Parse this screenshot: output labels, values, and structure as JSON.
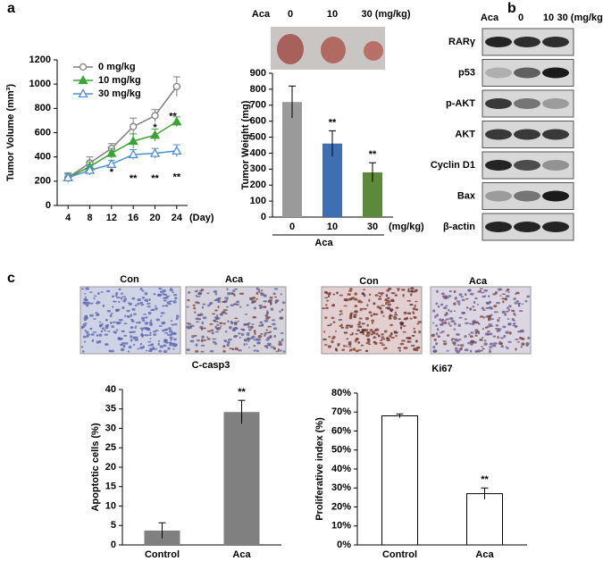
{
  "panels": {
    "a": "a",
    "b": "b",
    "c": "c"
  },
  "photo_header": {
    "drug": "Aca",
    "doses": [
      "0",
      "10",
      "30 (mg/kg)"
    ]
  },
  "blot": {
    "drug": "Aca",
    "doses": [
      "0",
      "10",
      "30 (mg/kg)"
    ],
    "rows": [
      "RARγ",
      "p53",
      "p-AKT",
      "AKT",
      "Cyclin D1",
      "Bax",
      "β-actin"
    ]
  },
  "micrographs": {
    "left": [
      "Con",
      "Aca"
    ],
    "right": [
      "Con",
      "Aca"
    ]
  },
  "chart_data": [
    {
      "type": "line",
      "ylabel": "Tumor Volume (mm³)",
      "xlabel": "(Day)",
      "x": [
        4,
        8,
        12,
        16,
        20,
        24
      ],
      "xlim": [
        2,
        26
      ],
      "xticks": [
        4,
        8,
        12,
        16,
        20,
        24
      ],
      "ylim": [
        0,
        1200
      ],
      "yticks": [
        0,
        200,
        400,
        600,
        800,
        1000,
        1200
      ],
      "series": [
        {
          "name": "0 mg/kg",
          "color": "#7f7f7f",
          "marker": "circle-open",
          "values": [
            230,
            350,
            470,
            650,
            740,
            980
          ],
          "errors": [
            40,
            50,
            40,
            70,
            50,
            80
          ]
        },
        {
          "name": "10 mg/kg",
          "color": "#3aa335",
          "marker": "triangle",
          "values": [
            230,
            320,
            430,
            530,
            580,
            690
          ],
          "errors": [
            30,
            40,
            40,
            60,
            50,
            40
          ]
        },
        {
          "name": "30 mg/kg",
          "color": "#4f8fd0",
          "marker": "triangle-open",
          "values": [
            230,
            290,
            340,
            420,
            430,
            450
          ],
          "errors": [
            30,
            40,
            30,
            40,
            40,
            50
          ]
        }
      ],
      "annotations": [
        {
          "text": "*",
          "x": 12,
          "y": 270
        },
        {
          "text": "**",
          "x": 16,
          "y": 220
        },
        {
          "text": "*",
          "x": 20,
          "y": 640
        },
        {
          "text": "**",
          "x": 20,
          "y": 220
        },
        {
          "text": "**",
          "x": 23.3,
          "y": 730
        },
        {
          "text": "**",
          "x": 24,
          "y": 230
        }
      ]
    },
    {
      "type": "bar",
      "ylabel": "Tumor Weight (mg)",
      "xlabel": "Aca",
      "x_unit": "(mg/kg)",
      "categories": [
        "0",
        "10",
        "30"
      ],
      "values": [
        720,
        460,
        280
      ],
      "errors": [
        100,
        80,
        60
      ],
      "colors": [
        "#9a9a9a",
        "#3f6fb3",
        "#5a8a3a"
      ],
      "significance": [
        null,
        "**",
        "**"
      ],
      "ylim": [
        0,
        900
      ],
      "yticks": [
        0,
        100,
        200,
        300,
        400,
        500,
        600,
        700,
        800,
        900
      ]
    },
    {
      "type": "bar",
      "title": "C-casp3",
      "ylabel": "Apoptotic cells (%)",
      "categories": [
        "Control",
        "Aca"
      ],
      "values": [
        3.7,
        34.2
      ],
      "errors": [
        2,
        3
      ],
      "color": "#808080",
      "significance": [
        null,
        "**"
      ],
      "ylim": [
        0,
        40
      ],
      "yticks": [
        0,
        5,
        10,
        15,
        20,
        25,
        30,
        35,
        40
      ]
    },
    {
      "type": "bar",
      "title": "Ki67",
      "ylabel": "Proliferative index (%)",
      "categories": [
        "Control",
        "Aca"
      ],
      "values": [
        68,
        27
      ],
      "errors": [
        1,
        3
      ],
      "color": "#ffffff",
      "significance": [
        null,
        "**"
      ],
      "ylim": [
        0,
        80
      ],
      "yticks": [
        {
          "value": 0,
          "label": "0%"
        },
        {
          "value": 10,
          "label": "10%"
        },
        {
          "value": 20,
          "label": "20%"
        },
        {
          "value": 30,
          "label": "30%"
        },
        {
          "value": 40,
          "label": "40%"
        },
        {
          "value": 50,
          "label": "50%"
        },
        {
          "value": 60,
          "label": "60%"
        },
        {
          "value": 70,
          "label": "70%"
        },
        {
          "value": 80,
          "label": "80%"
        }
      ]
    }
  ]
}
